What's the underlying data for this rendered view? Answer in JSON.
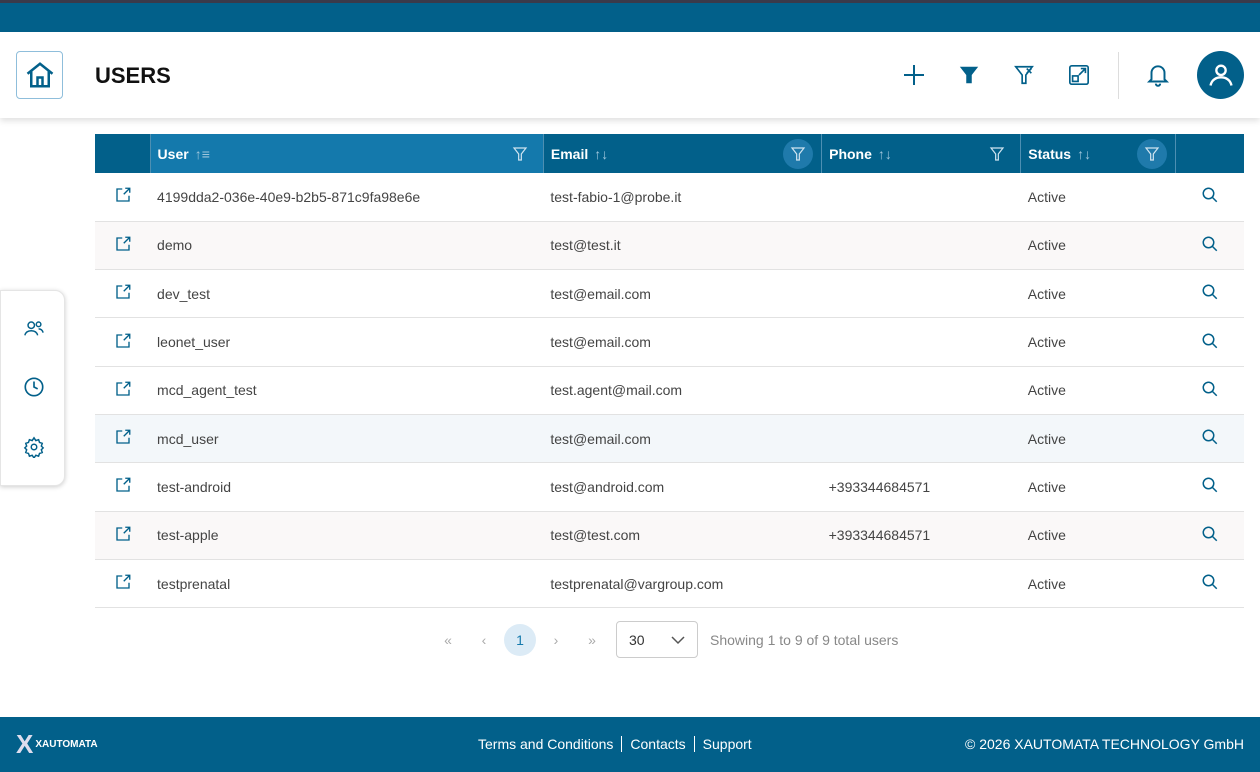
{
  "header": {
    "title": "USERS"
  },
  "toolbar": {
    "icons": [
      "plus-icon",
      "filter-icon",
      "clear-filter-icon",
      "expand-icon",
      "bell-icon",
      "user-avatar-icon"
    ]
  },
  "sidebar": {
    "icons": [
      "users-icon",
      "clock-icon",
      "gear-icon"
    ]
  },
  "table": {
    "columns": [
      {
        "label": "User",
        "sort": "asc"
      },
      {
        "label": "Email",
        "sort": "none"
      },
      {
        "label": "Phone",
        "sort": "none"
      },
      {
        "label": "Status",
        "sort": "none"
      }
    ],
    "rows": [
      {
        "user": "4199dda2-036e-40e9-b2b5-871c9fa98e6e",
        "email": "test-fabio-1@probe.it",
        "phone": "",
        "status": "Active"
      },
      {
        "user": "demo",
        "email": "test@test.it",
        "phone": "",
        "status": "Active"
      },
      {
        "user": "dev_test",
        "email": "test@email.com",
        "phone": "",
        "status": "Active"
      },
      {
        "user": "leonet_user",
        "email": "test@email.com",
        "phone": "",
        "status": "Active"
      },
      {
        "user": "mcd_agent_test",
        "email": "test.agent@mail.com",
        "phone": "",
        "status": "Active"
      },
      {
        "user": "mcd_user",
        "email": "test@email.com",
        "phone": "",
        "status": "Active"
      },
      {
        "user": "test-android",
        "email": "test@android.com",
        "phone": "+393344684571",
        "status": "Active"
      },
      {
        "user": "test-apple",
        "email": "test@test.com",
        "phone": "+393344684571",
        "status": "Active"
      },
      {
        "user": "testprenatal",
        "email": "testprenatal@vargroup.com",
        "phone": "",
        "status": "Active"
      }
    ]
  },
  "pagination": {
    "first": "«",
    "prev": "‹",
    "current": "1",
    "next": "›",
    "last": "»",
    "page_size": "30",
    "summary": "Showing 1 to 9 of 9 total users"
  },
  "footer": {
    "logo": "XAUTOMATA",
    "links": [
      "Terms and Conditions",
      "Contacts",
      "Support"
    ],
    "copyright": "© 2026 XAUTOMATA TECHNOLOGY GmbH"
  },
  "colors": {
    "primary": "#02608a",
    "header_active": "#1479ac"
  }
}
